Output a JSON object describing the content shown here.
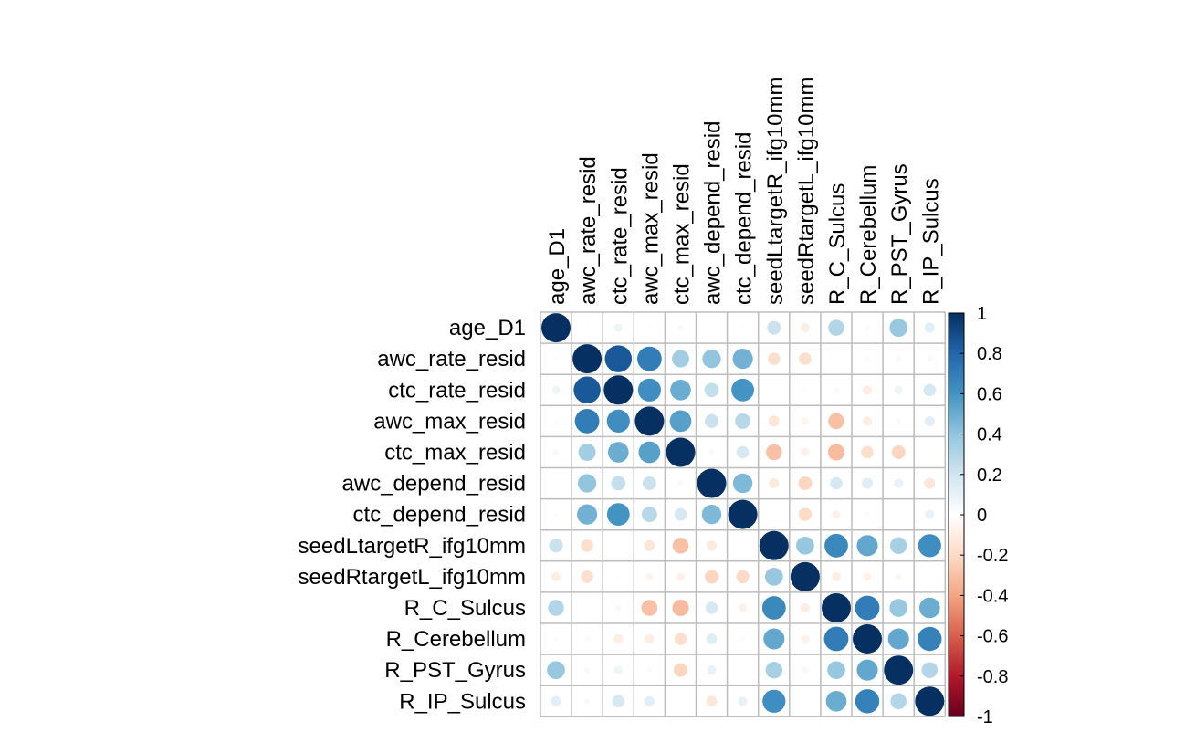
{
  "chart_data": {
    "type": "heatmap",
    "variables": [
      "age_D1",
      "awc_rate_resid",
      "ctc_rate_resid",
      "awc_max_resid",
      "ctc_max_resid",
      "awc_depend_resid",
      "ctc_depend_resid",
      "seedLtargetR_ifg10mm",
      "seedRtargetL_ifg10mm",
      "R_C_Sulcus",
      "R_Cerebellum",
      "R_PST_Gyrus",
      "R_IP_Sulcus"
    ],
    "matrix": [
      [
        1.0,
        0.02,
        0.08,
        0.02,
        0.04,
        0.0,
        0.02,
        0.22,
        -0.1,
        0.3,
        0.03,
        0.38,
        0.12
      ],
      [
        0.02,
        1.0,
        0.85,
        0.7,
        0.35,
        0.4,
        0.48,
        -0.18,
        -0.18,
        0.0,
        -0.03,
        0.04,
        0.04
      ],
      [
        0.08,
        0.85,
        1.0,
        0.62,
        0.5,
        0.24,
        0.6,
        0.0,
        0.02,
        0.04,
        -0.1,
        0.08,
        0.18
      ],
      [
        0.02,
        0.7,
        0.62,
        1.0,
        0.55,
        0.22,
        0.28,
        -0.14,
        -0.06,
        -0.3,
        -0.1,
        0.03,
        0.12
      ],
      [
        0.04,
        0.35,
        0.5,
        0.55,
        1.0,
        0.04,
        0.18,
        -0.3,
        -0.08,
        -0.32,
        -0.18,
        -0.22,
        0.0
      ],
      [
        0.0,
        0.4,
        0.24,
        0.22,
        0.04,
        1.0,
        0.45,
        -0.12,
        -0.22,
        0.18,
        0.14,
        0.1,
        -0.14
      ],
      [
        0.02,
        0.48,
        0.6,
        0.28,
        0.18,
        0.45,
        1.0,
        0.0,
        -0.2,
        -0.08,
        -0.03,
        0.0,
        0.1
      ],
      [
        0.22,
        -0.18,
        0.0,
        -0.14,
        -0.3,
        -0.12,
        0.0,
        1.0,
        0.38,
        0.65,
        0.52,
        0.33,
        0.62
      ],
      [
        -0.1,
        -0.18,
        0.02,
        -0.06,
        -0.08,
        -0.22,
        -0.2,
        0.38,
        1.0,
        -0.1,
        -0.08,
        -0.05,
        0.0
      ],
      [
        0.3,
        0.0,
        0.04,
        -0.3,
        -0.32,
        0.18,
        -0.08,
        0.65,
        -0.1,
        1.0,
        0.7,
        0.38,
        0.5
      ],
      [
        0.03,
        -0.03,
        -0.1,
        -0.1,
        -0.18,
        0.14,
        -0.03,
        0.52,
        -0.08,
        0.7,
        1.0,
        0.52,
        0.68
      ],
      [
        0.38,
        0.04,
        0.08,
        0.03,
        -0.22,
        0.1,
        0.0,
        0.33,
        -0.05,
        0.38,
        0.52,
        1.0,
        0.3
      ],
      [
        0.12,
        0.04,
        0.18,
        0.12,
        0.0,
        -0.14,
        0.1,
        0.62,
        0.0,
        0.5,
        0.68,
        0.3,
        1.0
      ]
    ],
    "colorbar": {
      "min": -1,
      "max": 1,
      "ticks": [
        "-1",
        "-0.8",
        "-0.6",
        "-0.4",
        "-0.2",
        "0",
        "0.2",
        "0.4",
        "0.6",
        "0.8",
        "1"
      ],
      "colors": [
        "#67001F",
        "#B2182B",
        "#D6604D",
        "#F4A582",
        "#FDDBC7",
        "#FFFFFF",
        "#D1E5F0",
        "#92C5DE",
        "#4393C3",
        "#2166AC",
        "#053061"
      ]
    },
    "grid": true,
    "grid_color": "#bdbdbd",
    "legend_position": "right"
  }
}
